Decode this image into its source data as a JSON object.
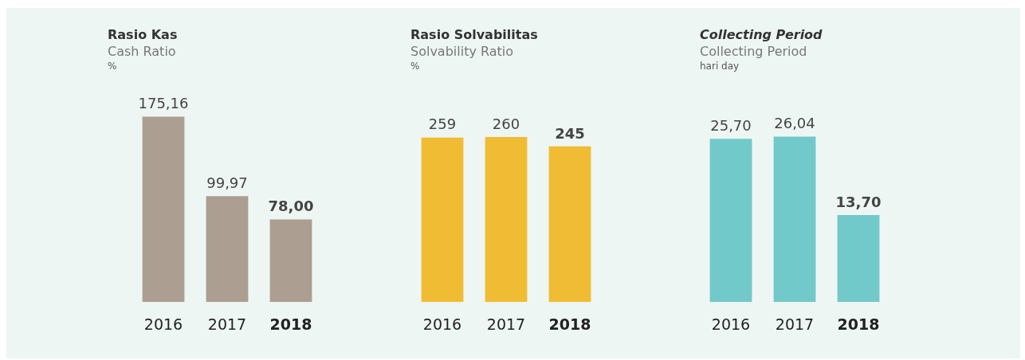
{
  "chart_data": [
    {
      "type": "bar",
      "title": "Rasio Kas",
      "subtitle": "Cash Ratio",
      "ylabel": "%",
      "categories": [
        "2016",
        "2017",
        "2018"
      ],
      "values": [
        175.16,
        99.97,
        78.0
      ],
      "color": "#ac9e90",
      "value_labels": [
        "175,16",
        "99,97",
        "78,00"
      ]
    },
    {
      "type": "bar",
      "title": "Rasio Solvabilitas",
      "subtitle": "Solvability Ratio",
      "ylabel": "%",
      "categories": [
        "2016",
        "2017",
        "2018"
      ],
      "values": [
        259,
        260,
        245
      ],
      "color": "#f0bc33",
      "value_labels": [
        "259",
        "260",
        "245"
      ]
    },
    {
      "type": "bar",
      "title": "Collecting Period",
      "subtitle": "Collecting Period",
      "ylabel": "hari day",
      "categories": [
        "2016",
        "2017",
        "2018"
      ],
      "values": [
        25.7,
        26.04,
        13.7
      ],
      "color": "#72c9c9",
      "value_labels": [
        "25,70",
        "26,04",
        "13,70"
      ]
    }
  ]
}
